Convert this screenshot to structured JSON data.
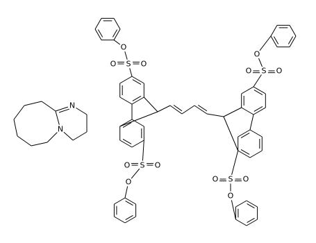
{
  "labels": [
    "N",
    "N",
    "O",
    "S",
    "O",
    "O",
    "S",
    "O",
    "O",
    "O",
    "O",
    "S",
    "O",
    "O",
    "S",
    "O",
    "O",
    "O"
  ]
}
